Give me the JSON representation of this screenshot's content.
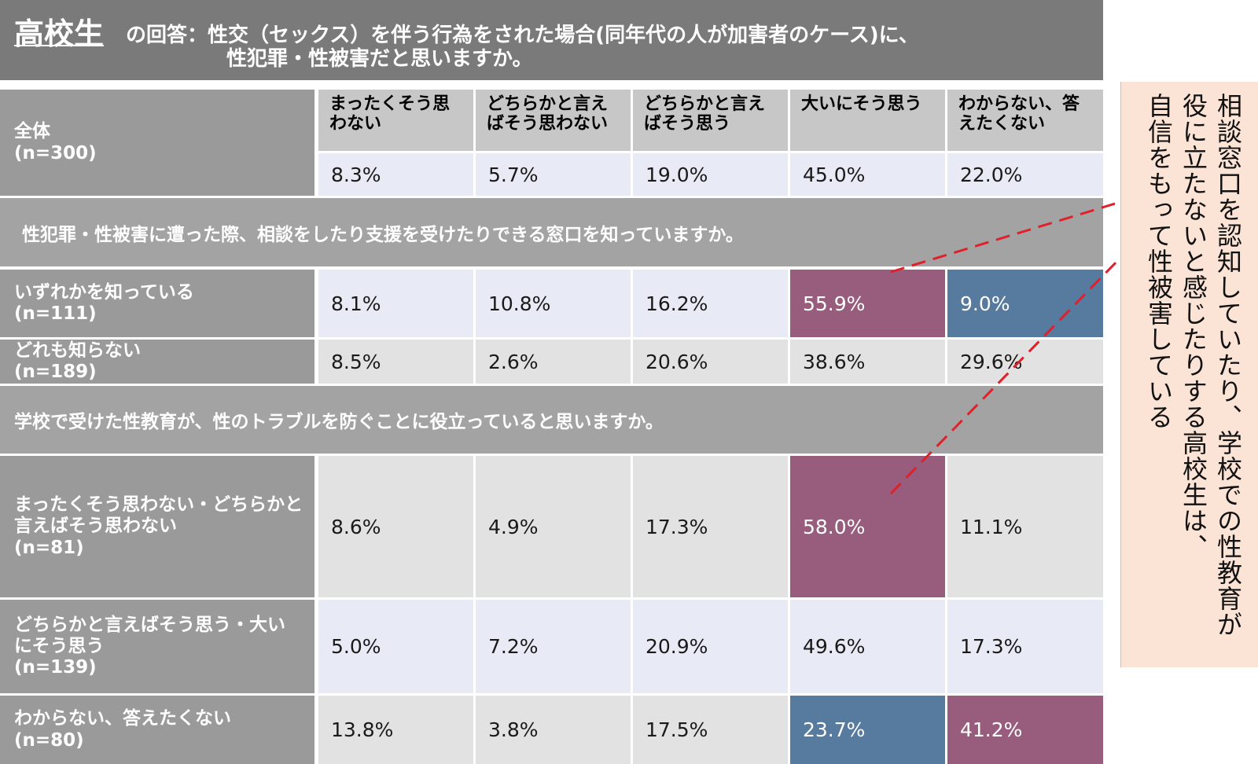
{
  "title": {
    "prefix": "高校生",
    "line1": "の回答：性交（セックス）を伴う行為をされた場合(同年代の人が加害者のケース)に、",
    "line2": "性犯罪・性被害だと思いますか。"
  },
  "colors": {
    "purple": "#985d7c",
    "blue": "#577a9f",
    "light_blue": "#e8ebf5",
    "light_gray": "#e2e2e2"
  },
  "chart_data": {
    "type": "table",
    "title": "高校生の回答：性交（セックス）を伴う行為をされた場合(同年代の人が加害者のケース)に、性犯罪・性被害だと思いますか。",
    "columns": [
      "まったくそう思わない",
      "どちらかと言えばそう思わない",
      "どちらかと言えばそう思う",
      "大いにそう思う",
      "わからない、答えたくない"
    ],
    "overall": {
      "label": "全体\n(n=300)",
      "values": [
        "8.3%",
        "5.7%",
        "19.0%",
        "45.0%",
        "22.0%"
      ]
    },
    "sections": [
      {
        "heading": "性犯罪・性被害に遭った際、相談をしたり支援を受けたりできる窓口を知っていますか。",
        "rows": [
          {
            "label": "いずれかを知っている\n(n=111)",
            "values": [
              "8.1%",
              "10.8%",
              "16.2%",
              "55.9%",
              "9.0%"
            ]
          },
          {
            "label": "どれも知らない\n(n=189)",
            "values": [
              "8.5%",
              "2.6%",
              "20.6%",
              "38.6%",
              "29.6%"
            ]
          }
        ]
      },
      {
        "heading": "学校で受けた性教育が、性のトラブルを防ぐことに役立っていると思いますか。",
        "rows": [
          {
            "label": "まったくそう思わない・どちらかと\n言えばそう思わない\n(n=81)",
            "values": [
              "8.6%",
              "4.9%",
              "17.3%",
              "58.0%",
              "11.1%"
            ]
          },
          {
            "label": "どちらかと言えばそう思う・大い\nにそう思う\n(n=139)",
            "values": [
              "5.0%",
              "7.2%",
              "20.9%",
              "49.6%",
              "17.3%"
            ]
          },
          {
            "label": "わからない、答えたくない\n(n=80)",
            "values": [
              "13.8%",
              "3.8%",
              "17.5%",
              "23.7%",
              "41.2%"
            ]
          }
        ]
      }
    ],
    "highlights": [
      {
        "row": "いずれかを知っている",
        "column": "大いにそう思う",
        "color": "purple"
      },
      {
        "row": "いずれかを知っている",
        "column": "わからない、答えたくない",
        "color": "blue"
      },
      {
        "row": "まったくそう思わない・どちらかと言えばそう思わない",
        "column": "大いにそう思う",
        "color": "purple"
      },
      {
        "row": "わからない、答えたくない",
        "column": "大いにそう思う",
        "color": "blue"
      },
      {
        "row": "わからない、答えたくない",
        "column": "わからない、答えたくない",
        "color": "purple"
      }
    ]
  },
  "callout": {
    "lines": [
      "相談窓口を認知していたり、学校での性教育が",
      "役に立たないと感じたりする高校生は、",
      "自信をもって性被害している"
    ]
  }
}
